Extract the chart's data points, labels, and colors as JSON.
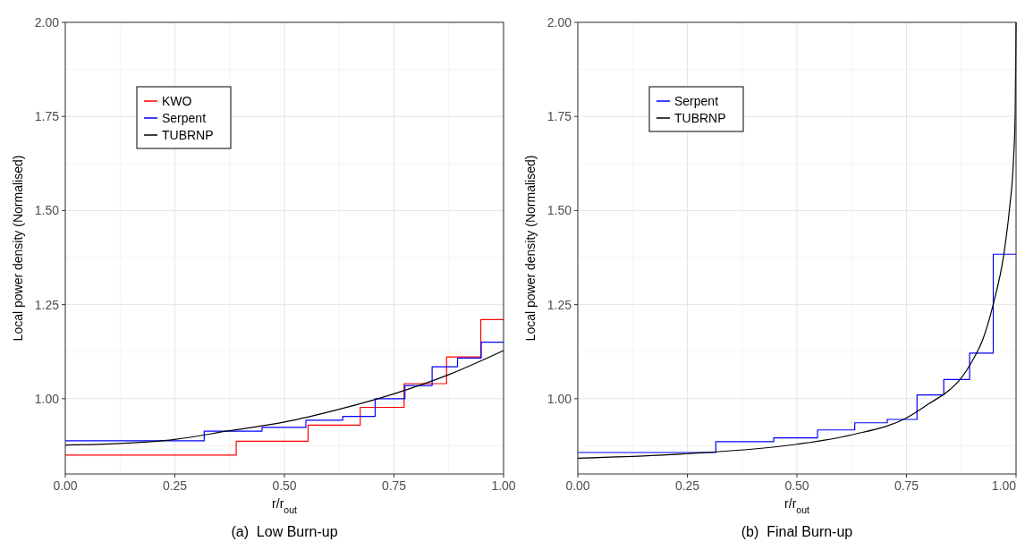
{
  "chart_data": [
    {
      "type": "step",
      "title": "(a)  Low Burn-up",
      "xlabel": "r/r$_{out}$",
      "ylabel": "Local power density (Normalised)",
      "xlim": [
        0,
        1
      ],
      "ylim": [
        0.8,
        2
      ],
      "xticks": [
        {
          "value": 0,
          "label": "0.00"
        },
        {
          "value": 0.25,
          "label": "0.25"
        },
        {
          "value": 0.5,
          "label": "0.50"
        },
        {
          "value": 0.75,
          "label": "0.75"
        },
        {
          "value": 1,
          "label": "1.00"
        }
      ],
      "yticks": [
        {
          "value": 1,
          "label": "1.00"
        },
        {
          "value": 1.25,
          "label": "1.25"
        },
        {
          "value": 1.5,
          "label": "1.50"
        },
        {
          "value": 1.75,
          "label": "1.75"
        },
        {
          "value": 2,
          "label": "2.00"
        }
      ],
      "grid": true,
      "legend": "top left",
      "series": [
        {
          "name": "KWO",
          "color": "#ff0000",
          "x": [
            0,
            0.39,
            0.554,
            0.673,
            0.773,
            0.87,
            0.948,
            1
          ],
          "values": [
            0.85,
            0.887,
            0.93,
            0.977,
            1.04,
            1.111,
            1.21,
            1.21
          ]
        },
        {
          "name": "Serpent",
          "color": "#0000ff",
          "x": [
            0,
            0.317,
            0.449,
            0.549,
            0.633,
            0.707,
            0.775,
            0.837,
            0.895,
            0.949,
            1
          ],
          "values": [
            0.888,
            0.914,
            0.924,
            0.943,
            0.953,
            1.0,
            1.035,
            1.085,
            1.108,
            1.15,
            1.15
          ]
        },
        {
          "name": "TUBRNP",
          "color": "#000000",
          "type": "line",
          "x": [
            0,
            0.125,
            0.25,
            0.375,
            0.5,
            0.625,
            0.75,
            0.875,
            1
          ],
          "values": [
            0.877,
            0.881,
            0.892,
            0.915,
            0.938,
            0.972,
            1.013,
            1.064,
            1.128
          ]
        }
      ]
    },
    {
      "type": "step",
      "title": "(b)  Final Burn-up",
      "xlabel": "r/r$_{out}$",
      "ylabel": "Local power density (Normalised)",
      "xlim": [
        0,
        1
      ],
      "ylim": [
        0.8,
        2
      ],
      "xticks": [
        {
          "value": 0,
          "label": "0.00"
        },
        0.25,
        {
          "value": 0.5,
          "label": "0.50"
        },
        0.75,
        {
          "value": 1,
          "label": "1.00"
        }
      ],
      "yticks": [
        {
          "value": 1,
          "label": "1.00"
        },
        1.25,
        {
          "value": 1.5,
          "label": "1.50"
        },
        1.75,
        {
          "value": 2,
          "label": "2.00"
        }
      ],
      "grid": true,
      "legend": "top left",
      "series": [
        {
          "name": "Serpent",
          "color": "#0000ff",
          "x": [
            0,
            0.315,
            0.447,
            0.547,
            0.632,
            0.706,
            0.774,
            0.835,
            0.894,
            0.948,
            1
          ],
          "values": [
            0.857,
            0.886,
            0.896,
            0.917,
            0.936,
            0.945,
            1.01,
            1.051,
            1.121,
            1.384,
            1.384
          ]
        },
        {
          "name": "TUBRNP",
          "color": "#000000",
          "type": "line",
          "x": [
            0,
            0.25,
            0.5,
            0.625,
            0.75,
            0.8,
            0.85,
            0.875,
            0.9,
            0.925,
            0.948,
            0.972,
            0.985,
            0.994,
            0.998,
            1
          ],
          "values": [
            0.842,
            0.854,
            0.879,
            0.904,
            0.949,
            0.986,
            1.025,
            1.055,
            1.1,
            1.16,
            1.251,
            1.383,
            1.504,
            1.631,
            1.758,
            2.0
          ]
        }
      ]
    }
  ]
}
